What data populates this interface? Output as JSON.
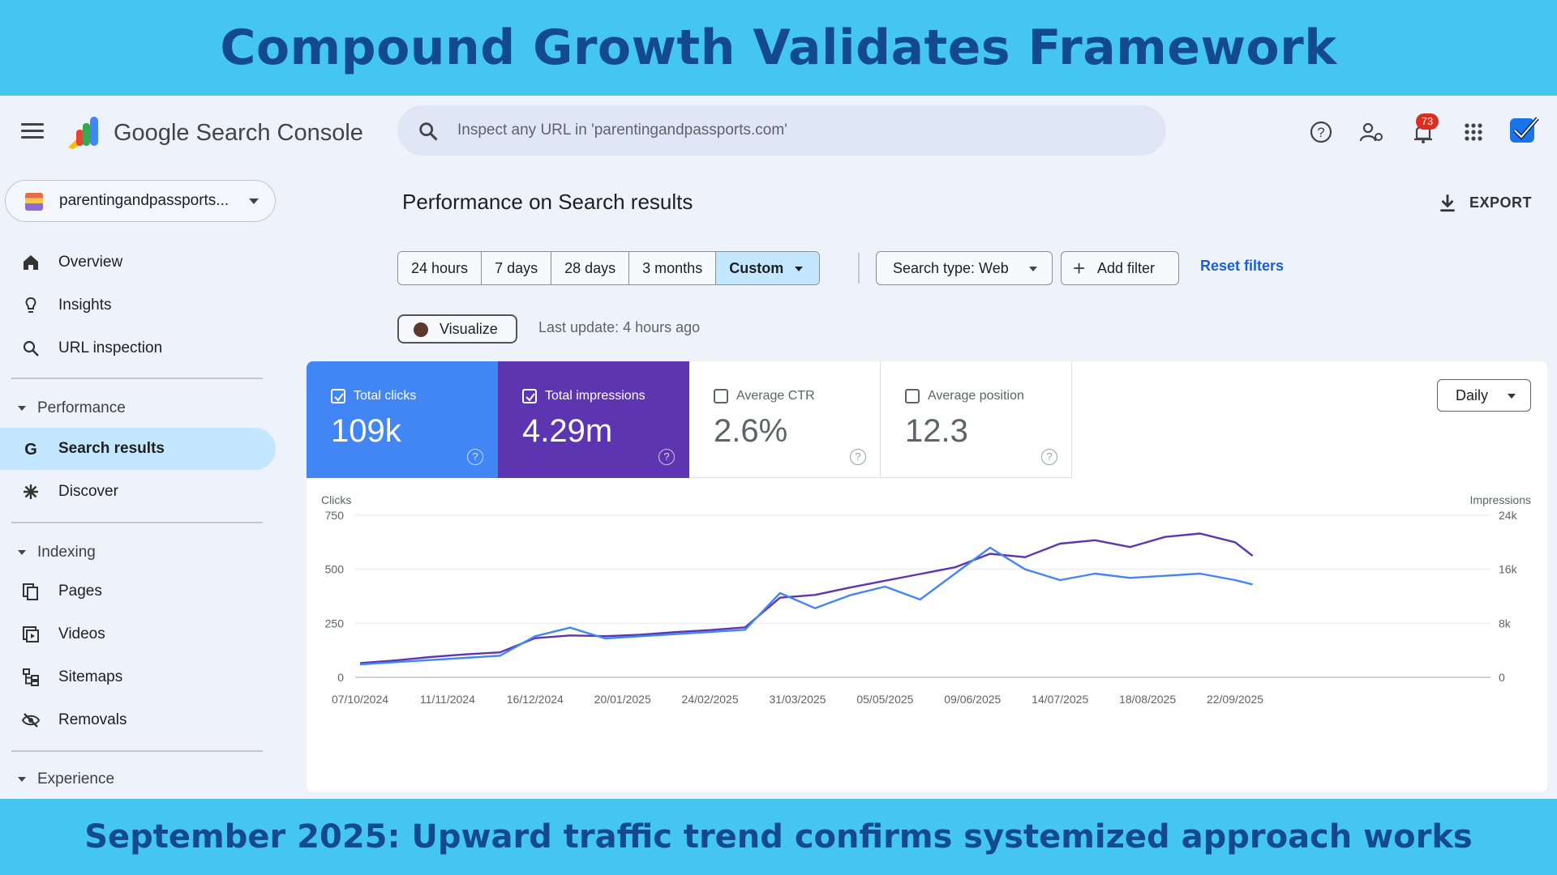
{
  "banner": {
    "title": "Compound Growth Validates Framework",
    "footer": "September 2025: Upward traffic trend confirms systemized approach works"
  },
  "header": {
    "brand": "Google Search Console",
    "search_placeholder": "Inspect any URL in 'parentingandpassports.com'",
    "notification_count": "73"
  },
  "sidebar": {
    "property": "parentingandpassports...",
    "items_top": [
      {
        "label": "Overview",
        "icon": "home-icon"
      },
      {
        "label": "Insights",
        "icon": "lightbulb-icon"
      },
      {
        "label": "URL inspection",
        "icon": "search-icon"
      }
    ],
    "performance_header": "Performance",
    "performance_items": [
      {
        "label": "Search results",
        "icon": "google-g-icon",
        "active": true
      },
      {
        "label": "Discover",
        "icon": "asterisk-icon"
      }
    ],
    "indexing_header": "Indexing",
    "indexing_items": [
      {
        "label": "Pages",
        "icon": "pages-icon"
      },
      {
        "label": "Videos",
        "icon": "videos-icon"
      },
      {
        "label": "Sitemaps",
        "icon": "sitemap-icon"
      },
      {
        "label": "Removals",
        "icon": "removals-icon"
      }
    ],
    "experience_header": "Experience"
  },
  "main": {
    "title": "Performance on Search results",
    "export_label": "EXPORT",
    "date_ranges": [
      "24 hours",
      "7 days",
      "28 days",
      "3 months",
      "Custom"
    ],
    "selected_range": "Custom",
    "search_type": "Search type: Web",
    "add_filter": "Add filter",
    "reset_filters": "Reset filters",
    "visualize": "Visualize",
    "last_update": "Last update: 4 hours ago",
    "granularity": "Daily",
    "metrics": [
      {
        "label": "Total clicks",
        "value": "109k",
        "checked": true
      },
      {
        "label": "Total impressions",
        "value": "4.29m",
        "checked": true
      },
      {
        "label": "Average CTR",
        "value": "2.6%",
        "checked": false
      },
      {
        "label": "Average position",
        "value": "12.3",
        "checked": false
      }
    ]
  },
  "colors": {
    "clicks": "#4285f4",
    "impressions": "#5e35b1",
    "banner": "#45c6f0",
    "banner_text": "#134a8e"
  },
  "chart_data": {
    "type": "line",
    "y_left_label": "Clicks",
    "y_right_label": "Impressions",
    "y_left_ticks": [
      "750",
      "500",
      "250",
      "0"
    ],
    "y_right_ticks": [
      "24k",
      "16k",
      "8k",
      "0"
    ],
    "ylim_left": [
      0,
      750
    ],
    "ylim_right": [
      0,
      24000
    ],
    "x_ticks": [
      "07/10/2024",
      "11/11/2024",
      "16/12/2024",
      "20/01/2025",
      "24/02/2025",
      "31/03/2025",
      "05/05/2025",
      "09/06/2025",
      "14/07/2025",
      "18/08/2025",
      "22/09/2025"
    ],
    "grid": true,
    "series": [
      {
        "name": "Clicks",
        "axis": "left",
        "x": [
          "07/10/2024",
          "21/10/2024",
          "04/11/2024",
          "18/11/2024",
          "02/12/2024",
          "16/12/2024",
          "30/12/2024",
          "13/01/2025",
          "27/01/2025",
          "10/02/2025",
          "24/02/2025",
          "10/03/2025",
          "24/03/2025",
          "07/04/2025",
          "21/04/2025",
          "05/05/2025",
          "19/05/2025",
          "02/06/2025",
          "16/06/2025",
          "30/06/2025",
          "14/07/2025",
          "28/07/2025",
          "11/08/2025",
          "25/08/2025",
          "08/09/2025",
          "22/09/2025",
          "29/09/2025"
        ],
        "values": [
          60,
          70,
          80,
          90,
          100,
          190,
          230,
          180,
          190,
          200,
          210,
          220,
          390,
          320,
          380,
          420,
          360,
          480,
          600,
          500,
          450,
          480,
          460,
          470,
          480,
          450,
          430
        ]
      },
      {
        "name": "Impressions",
        "axis": "right",
        "x": [
          "07/10/2024",
          "21/10/2024",
          "04/11/2024",
          "18/11/2024",
          "02/12/2024",
          "16/12/2024",
          "30/12/2024",
          "13/01/2025",
          "27/01/2025",
          "10/02/2025",
          "24/02/2025",
          "10/03/2025",
          "24/03/2025",
          "07/04/2025",
          "21/04/2025",
          "05/05/2025",
          "19/05/2025",
          "02/06/2025",
          "16/06/2025",
          "30/06/2025",
          "14/07/2025",
          "28/07/2025",
          "11/08/2025",
          "25/08/2025",
          "08/09/2025",
          "22/09/2025",
          "29/09/2025"
        ],
        "values": [
          2100,
          2500,
          3000,
          3400,
          3700,
          5800,
          6200,
          6100,
          6300,
          6700,
          7000,
          7400,
          11800,
          12200,
          13300,
          14300,
          15300,
          16300,
          18300,
          17800,
          19800,
          20300,
          19300,
          20800,
          21300,
          20000,
          18000
        ]
      }
    ]
  }
}
